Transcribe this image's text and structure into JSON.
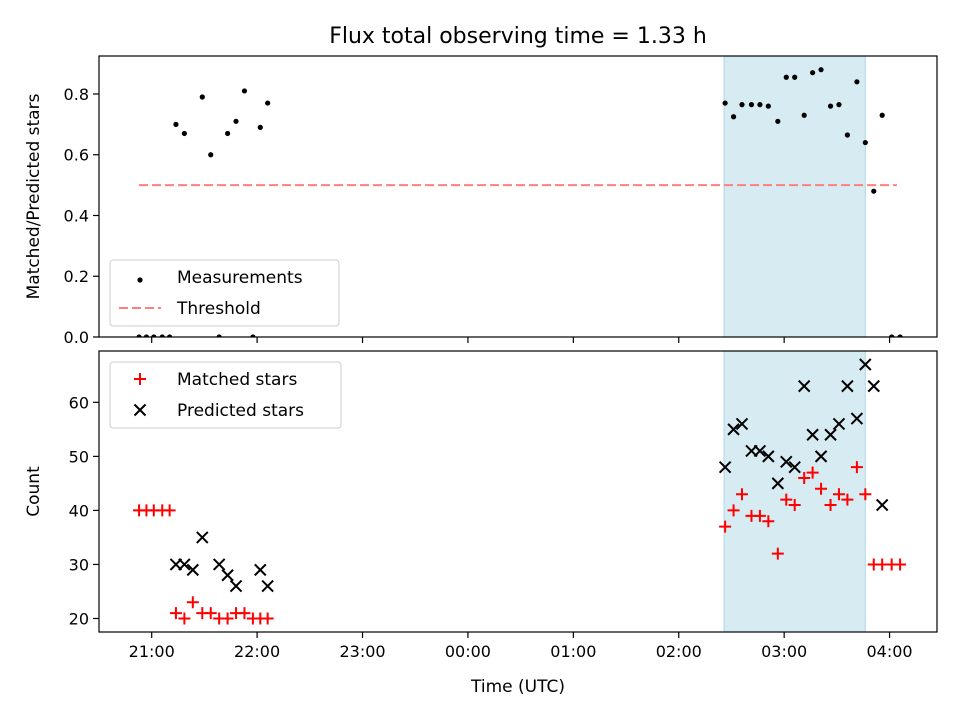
{
  "title": "Flux total observing time = 1.33 h",
  "x_tick_labels": [
    "21:00",
    "22:00",
    "23:00",
    "00:00",
    "01:00",
    "02:00",
    "03:00",
    "04:00"
  ],
  "x_tick_hours": [
    21,
    22,
    23,
    24,
    25,
    26,
    27,
    28
  ],
  "x_label": "Time (UTC)",
  "colors": {
    "shade": "#add8e6",
    "threshold": "#ff7f7f",
    "matched": "#ff0000",
    "predicted": "#000000"
  },
  "chart_data": [
    {
      "type": "scatter",
      "ylabel": "Matched/Predicted stars",
      "xlim": [
        20.5,
        28.45
      ],
      "ylim": [
        0,
        0.925
      ],
      "y_ticks": [
        "0.0",
        "0.2",
        "0.4",
        "0.6",
        "0.8"
      ],
      "y_tick_values": [
        0,
        0.2,
        0.4,
        0.6,
        0.8
      ],
      "legend": {
        "placement": "lower-left",
        "entries": [
          "Measurements",
          "Threshold"
        ]
      },
      "shaded_span": [
        26.43,
        27.77
      ],
      "threshold": {
        "value": 0.5,
        "x": [
          20.88,
          28.07
        ]
      },
      "series": [
        {
          "name": "Measurements",
          "x": [
            20.88,
            20.95,
            21.02,
            21.1,
            21.17,
            21.23,
            21.31,
            21.48,
            21.56,
            21.64,
            21.72,
            21.8,
            21.88,
            21.96,
            22.03,
            22.1,
            26.44,
            26.52,
            26.6,
            26.69,
            26.77,
            26.85,
            26.94,
            27.02,
            27.1,
            27.19,
            27.27,
            27.35,
            27.44,
            27.52,
            27.6,
            27.69,
            27.77,
            27.85,
            27.93,
            28.02,
            28.1
          ],
          "y": [
            0,
            0,
            0,
            0,
            0,
            0.7,
            0.67,
            0.79,
            0.6,
            0,
            0.67,
            0.71,
            0.81,
            0,
            0.69,
            0.77,
            0.77,
            0.725,
            0.765,
            0.765,
            0.765,
            0.76,
            0.71,
            0.855,
            0.855,
            0.73,
            0.87,
            0.88,
            0.76,
            0.765,
            0.665,
            0.84,
            0.64,
            0.48,
            0.73,
            0,
            0
          ]
        }
      ]
    },
    {
      "type": "scatter",
      "ylabel": "Count",
      "xlim": [
        20.5,
        28.45
      ],
      "ylim": [
        17.5,
        69.5
      ],
      "y_ticks": [
        "20",
        "30",
        "40",
        "50",
        "60"
      ],
      "y_tick_values": [
        20,
        30,
        40,
        50,
        60
      ],
      "legend": {
        "placement": "upper-left",
        "entries": [
          "Matched stars",
          "Predicted stars"
        ]
      },
      "shaded_span": [
        26.43,
        27.77
      ],
      "series": [
        {
          "name": "Matched stars",
          "x": [
            20.88,
            20.95,
            21.02,
            21.1,
            21.17,
            21.23,
            21.31,
            21.39,
            21.48,
            21.56,
            21.64,
            21.72,
            21.8,
            21.88,
            21.96,
            22.03,
            22.1,
            26.44,
            26.52,
            26.6,
            26.69,
            26.77,
            26.85,
            26.94,
            27.02,
            27.1,
            27.19,
            27.27,
            27.35,
            27.44,
            27.52,
            27.6,
            27.69,
            27.77,
            27.85,
            27.93,
            28.02,
            28.1
          ],
          "y": [
            40,
            40,
            40,
            40,
            40,
            21,
            20,
            23,
            21,
            21,
            20,
            20,
            21,
            21,
            20,
            20,
            20,
            37,
            40,
            43,
            39,
            39,
            38,
            32,
            42,
            41,
            46,
            47,
            44,
            41,
            43,
            42,
            48,
            43,
            30,
            30,
            30,
            30
          ]
        },
        {
          "name": "Predicted stars",
          "x": [
            21.23,
            21.31,
            21.39,
            21.48,
            21.64,
            21.72,
            21.8,
            22.03,
            22.1,
            26.44,
            26.52,
            26.6,
            26.69,
            26.77,
            26.85,
            26.94,
            27.02,
            27.1,
            27.19,
            27.27,
            27.35,
            27.44,
            27.52,
            27.6,
            27.69,
            27.77,
            27.85,
            27.93
          ],
          "y": [
            30,
            30,
            29,
            35,
            30,
            28,
            26,
            29,
            26,
            48,
            55,
            56,
            51,
            51,
            50,
            45,
            49,
            48,
            63,
            54,
            50,
            54,
            56,
            63,
            57,
            67,
            63,
            41
          ]
        }
      ]
    }
  ]
}
